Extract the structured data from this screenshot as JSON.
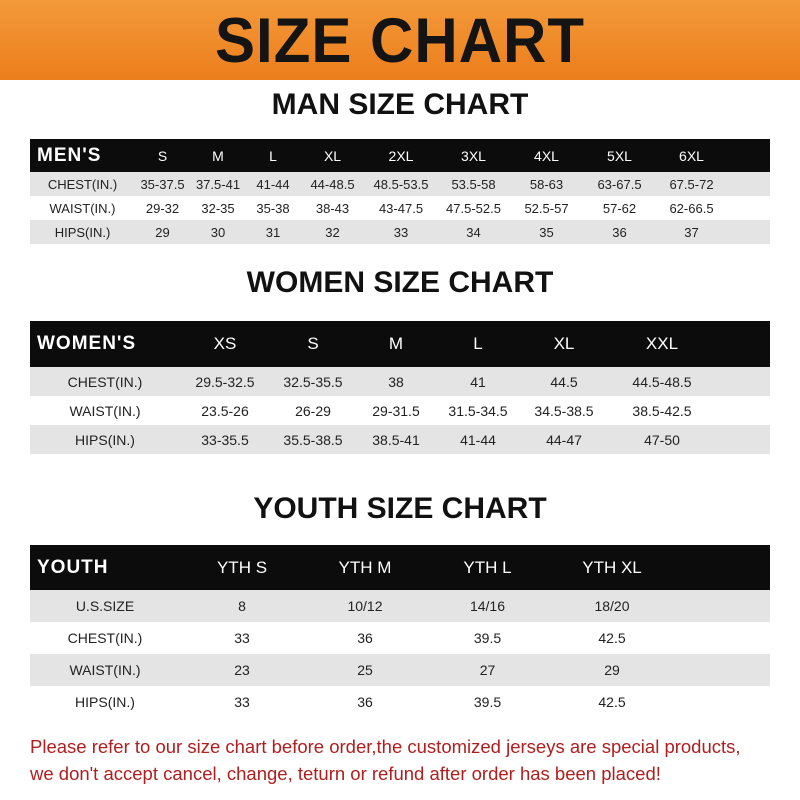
{
  "banner": {
    "title": "SIZE CHART",
    "color": "#ee8a2a"
  },
  "men": {
    "title": "MAN SIZE CHART",
    "header": [
      "MEN'S",
      "S",
      "M",
      "L",
      "XL",
      "2XL",
      "3XL",
      "4XL",
      "5XL",
      "6XL"
    ],
    "rows": [
      [
        "CHEST(IN.)",
        "35-37.5",
        "37.5-41",
        "41-44",
        "44-48.5",
        "48.5-53.5",
        "53.5-58",
        "58-63",
        "63-67.5",
        "67.5-72"
      ],
      [
        "WAIST(IN.)",
        "29-32",
        "32-35",
        "35-38",
        "38-43",
        "43-47.5",
        "47.5-52.5",
        "52.5-57",
        "57-62",
        "62-66.5"
      ],
      [
        "HIPS(IN.)",
        "29",
        "30",
        "31",
        "32",
        "33",
        "34",
        "35",
        "36",
        "37"
      ]
    ]
  },
  "women": {
    "title": "WOMEN SIZE CHART",
    "header": [
      "WOMEN'S",
      "XS",
      "S",
      "M",
      "L",
      "XL",
      "XXL"
    ],
    "rows": [
      [
        "CHEST(IN.)",
        "29.5-32.5",
        "32.5-35.5",
        "38",
        "41",
        "44.5",
        "44.5-48.5"
      ],
      [
        "WAIST(IN.)",
        "23.5-26",
        "26-29",
        "29-31.5",
        "31.5-34.5",
        "34.5-38.5",
        "38.5-42.5"
      ],
      [
        "HIPS(IN.)",
        "33-35.5",
        "35.5-38.5",
        "38.5-41",
        "41-44",
        "44-47",
        "47-50"
      ]
    ]
  },
  "youth": {
    "title": "YOUTH SIZE CHART",
    "header": [
      "YOUTH",
      "YTH S",
      "YTH M",
      "YTH L",
      "YTH XL"
    ],
    "rows": [
      [
        "U.S.SIZE",
        "8",
        "10/12",
        "14/16",
        "18/20"
      ],
      [
        "CHEST(IN.)",
        "33",
        "36",
        "39.5",
        "42.5"
      ],
      [
        "WAIST(IN.)",
        "23",
        "25",
        "27",
        "29"
      ],
      [
        "HIPS(IN.)",
        "33",
        "36",
        "39.5",
        "42.5"
      ]
    ]
  },
  "note": {
    "line1": "Please refer to our size chart before order,the customized jerseys are special products,",
    "line2": "we don't accept cancel, change, teturn or refund after order has been placed!",
    "color": "#b01e1e"
  }
}
